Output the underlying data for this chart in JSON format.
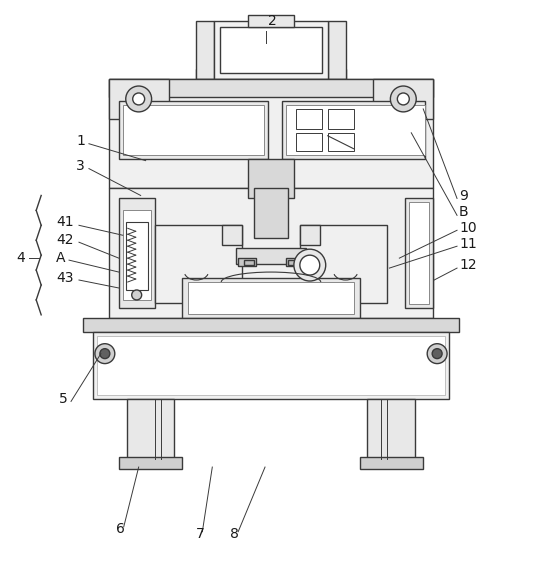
{
  "bg_color": "#ffffff",
  "line_color": "#3a3a3a",
  "lw": 1.0,
  "fig_w": 5.41,
  "fig_h": 5.69,
  "dpi": 100
}
